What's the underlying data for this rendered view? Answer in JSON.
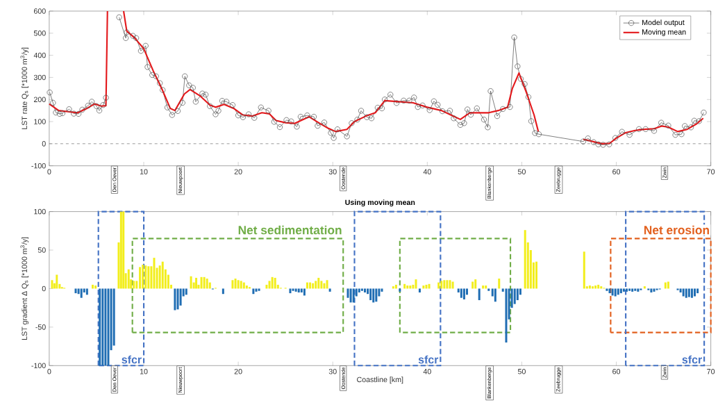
{
  "chart_data": [
    {
      "type": "line",
      "ylabel": "LST rate Q$_{s}$ [*1000 m$^{3}$/y]",
      "xlim": [
        0,
        70
      ],
      "xticks": [
        0,
        10,
        20,
        30,
        40,
        50,
        60,
        70
      ],
      "ylim": [
        -100,
        600
      ],
      "yticks": [
        -100,
        0,
        100,
        200,
        300,
        400,
        500,
        600
      ],
      "legend": "top right",
      "ref_lines": [
        {
          "axis": "y",
          "value": 0,
          "color": "#808080",
          "line_style": "dashed"
        }
      ],
      "annotations": [
        "Den Oever",
        "Nieuwpoort",
        "Oostende",
        "Blankenberge",
        "Zeebrugge",
        "Zwin"
      ],
      "series": [
        {
          "name": "Model output",
          "color": "#404040",
          "marker": "circle",
          "x": [
            0.05,
            0.4,
            0.7,
            1.1,
            1.4,
            2.1,
            2.6,
            3.1,
            3.5,
            4.1,
            4.5,
            5.0,
            5.3,
            5.7,
            6.0,
            6.7,
            7.4,
            8.1,
            8.2,
            8.85,
            9.2,
            9.7,
            10.2,
            10.4,
            10.9,
            11.3,
            11.7,
            12.0,
            12.5,
            13.0,
            13.6,
            14.1,
            14.35,
            14.8,
            15.2,
            15.5,
            16.2,
            16.55,
            17.0,
            17.6,
            17.9,
            18.3,
            18.75,
            19.4,
            20.0,
            20.5,
            21.1,
            21.7,
            22.4,
            23.2,
            23.8,
            24.4,
            25.1,
            25.6,
            26.2,
            26.6,
            27.3,
            28.0,
            28.4,
            29.1,
            29.8,
            30.1,
            30.5,
            31.5,
            32.0,
            32.6,
            33.0,
            33.6,
            34.1,
            34.75,
            35.2,
            35.5,
            36.1,
            36.75,
            37.5,
            38.1,
            38.6,
            39.0,
            39.5,
            40.25,
            40.7,
            41.1,
            41.6,
            42.4,
            42.8,
            43.5,
            43.9,
            44.25,
            44.6,
            45.25,
            46.0,
            46.4,
            46.7,
            47.4,
            48.0,
            48.75,
            49.2,
            49.55,
            49.9,
            50.3,
            50.7,
            51.0,
            51.4,
            51.8,
            56.5,
            57.0,
            57.6,
            58.1,
            58.6,
            59.25,
            59.9,
            60.6,
            61.4,
            62.4,
            63.1,
            64.0,
            64.75,
            65.5,
            66.25,
            66.9,
            67.25,
            67.9,
            68.25,
            68.75,
            69.25
          ],
          "values": [
            232,
            185,
            141,
            135,
            138,
            156,
            136,
            135,
            154,
            172,
            190,
            170,
            150,
            175,
            208,
            null,
            572,
            478,
            504,
            488,
            478,
            420,
            443,
            347,
            311,
            305,
            274,
            243,
            164,
            130,
            148,
            185,
            305,
            264,
            253,
            190,
            227,
            222,
            170,
            133,
            149,
            194,
            190,
            175,
            128,
            120,
            133,
            117,
            164,
            149,
            99,
            75,
            107,
            101,
            77,
            122,
            128,
            122,
            81,
            96,
            49,
            26,
            65,
            33,
            93,
            109,
            149,
            120,
            115,
            163,
            160,
            200,
            222,
            184,
            195,
            195,
            209,
            166,
            173,
            152,
            192,
            176,
            147,
            149,
            115,
            85,
            93,
            155,
            131,
            160,
            109,
            74,
            238,
            125,
            157,
            166,
            481,
            350,
            293,
            270,
            211,
            102,
            48,
            43,
            10,
            24,
            7,
            -3,
            -5,
            -3,
            26,
            54,
            40,
            66,
            66,
            58,
            95,
            82,
            40,
            43,
            80,
            74,
            104,
            102,
            141
          ]
        },
        {
          "name": "Moving mean",
          "color": "#e3191c",
          "marker": "none",
          "x": [
            0,
            1,
            2,
            3,
            4,
            4.8,
            5.5,
            6.0,
            6.16,
            6.5,
            7.87,
            8.2,
            9,
            10,
            11,
            12,
            12.8,
            13.3,
            14.3,
            14.9,
            16,
            17,
            17.6,
            18.5,
            19.5,
            20.5,
            21.5,
            22.5,
            23.3,
            24,
            25,
            26,
            27.5,
            28.5,
            29.5,
            30.3,
            31.5,
            32.3,
            33.5,
            34.5,
            35.5,
            37,
            38.5,
            40,
            41.5,
            42.5,
            43.5,
            44.5,
            45.5,
            46.5,
            47.5,
            48.5,
            49,
            49.7,
            50.5,
            51.3,
            51.75,
            54,
            56.5,
            57.5,
            58.5,
            59.3,
            60,
            61,
            62,
            63,
            64,
            64.8,
            65.5,
            66.5,
            67.5,
            68.5,
            69.2
          ],
          "values": [
            180,
            150,
            145,
            140,
            160,
            180,
            170,
            172,
            600,
            null,
            600,
            510,
            480,
            430,
            330,
            240,
            160,
            150,
            225,
            245,
            215,
            175,
            165,
            178,
            160,
            130,
            125,
            140,
            135,
            105,
            95,
            92,
            122,
            95,
            70,
            55,
            65,
            100,
            125,
            140,
            195,
            190,
            185,
            165,
            150,
            130,
            110,
            140,
            140,
            140,
            150,
            165,
            250,
            320,
            230,
            130,
            55,
            null,
            20,
            10,
            0,
            2,
            25,
            50,
            60,
            65,
            68,
            80,
            75,
            55,
            65,
            90,
            115
          ]
        }
      ]
    },
    {
      "type": "bar",
      "title": "Using moving mean",
      "xlabel": "Coastline [km]",
      "ylabel": "LST gradient Δ Q$_{s}$ [*1000 m$^{3}$/y]",
      "xlim": [
        0,
        70
      ],
      "xticks": [
        0,
        10,
        20,
        30,
        40,
        50,
        60,
        70
      ],
      "ylim": [
        -100,
        100
      ],
      "yticks": [
        -100,
        -50,
        0,
        50,
        100
      ],
      "annotations": [
        "Den Oever",
        "Nieuwpoort",
        "Oostende",
        "Blankenberge",
        "Zeebrugge",
        "Zwin",
        "sfcr",
        "sfcr",
        "sfcr",
        "Net sedimentation",
        "Net erosion"
      ],
      "series": [
        {
          "color": "#f2ee1c",
          "x": [
            0.3,
            0.55,
            0.8,
            1.1,
            1.35,
            1.6,
            4.6,
            4.9,
            7.35,
            7.6,
            7.85,
            8.1,
            8.4,
            8.65,
            8.95,
            9.25,
            9.6,
            9.9,
            10.2,
            10.5,
            10.8,
            11.1,
            11.4,
            11.7,
            12.0,
            12.3,
            12.6,
            12.9,
            15.0,
            15.3,
            15.55,
            15.8,
            16.1,
            16.4,
            16.7,
            17.0,
            17.6,
            19.4,
            19.7,
            20.0,
            20.3,
            20.6,
            20.9,
            21.2,
            23.0,
            23.3,
            23.6,
            23.9,
            24.2,
            24.5,
            25.0,
            27.3,
            27.6,
            27.9,
            28.2,
            28.5,
            28.8,
            29.1,
            29.4,
            36.4,
            36.7,
            37.6,
            37.9,
            38.2,
            38.5,
            38.8,
            39.6,
            39.9,
            40.2,
            41.2,
            41.5,
            41.8,
            42.1,
            42.4,
            42.7,
            44.8,
            45.1,
            45.9,
            46.2,
            47.6,
            50.35,
            50.65,
            50.95,
            51.25,
            51.55,
            56.6,
            56.9,
            57.2,
            57.5,
            57.8,
            58.1,
            58.4,
            58.7,
            63.0,
            65.2,
            65.5
          ],
          "values": [
            11,
            7,
            18,
            6,
            2,
            1,
            5,
            4,
            60,
            100,
            100,
            20,
            25,
            12,
            10,
            10,
            28,
            31,
            30,
            29,
            29,
            40,
            27,
            30,
            35,
            25,
            18,
            5,
            16,
            8,
            14,
            5,
            15,
            15,
            13,
            8,
            1,
            11,
            13,
            11,
            10,
            8,
            4,
            2,
            5,
            10,
            15,
            14,
            5,
            1,
            1,
            8,
            8,
            7,
            10,
            14,
            10,
            7,
            11,
            3,
            5,
            6,
            4,
            4,
            5,
            12,
            4,
            5,
            6,
            8,
            10,
            11,
            11,
            11,
            9,
            9,
            12,
            4,
            4,
            13,
            76,
            60,
            50,
            34,
            35,
            48,
            3,
            4,
            3,
            4,
            5,
            3,
            1,
            3,
            8,
            9
          ]
        },
        {
          "color": "#1f6db3",
          "x": [
            2.8,
            3.1,
            3.4,
            3.7,
            4.0,
            5.35,
            5.65,
            5.95,
            6.25,
            6.55,
            6.85,
            13.3,
            13.6,
            13.9,
            14.2,
            14.5,
            17.3,
            18.4,
            21.6,
            21.9,
            22.2,
            25.5,
            25.8,
            26.1,
            26.4,
            26.7,
            27.0,
            29.7,
            31.6,
            31.9,
            32.2,
            32.5,
            32.8,
            33.1,
            33.4,
            33.7,
            34.0,
            34.3,
            34.6,
            34.9,
            35.2,
            37.1,
            39.2,
            43.3,
            43.6,
            43.9,
            44.2,
            45.5,
            46.5,
            46.9,
            47.2,
            48.0,
            48.35,
            48.65,
            48.95,
            49.25,
            49.55,
            49.85,
            59.0,
            59.3,
            59.6,
            59.9,
            60.2,
            60.5,
            60.8,
            61.1,
            61.4,
            61.7,
            62.0,
            62.3,
            62.6,
            63.4,
            63.7,
            64.0,
            64.3,
            64.6,
            66.5,
            66.8,
            67.1,
            67.4,
            67.7,
            68.0,
            68.3,
            68.6
          ],
          "values": [
            -6,
            -7,
            -12,
            -5,
            -8,
            -100,
            -100,
            -100,
            -100,
            -80,
            -74,
            -28,
            -27,
            -22,
            -10,
            -8,
            -1,
            -7,
            -7,
            -4,
            -3,
            -6,
            -3,
            -4,
            -5,
            -5,
            -9,
            -4,
            -12,
            -18,
            -18,
            -10,
            -5,
            -3,
            -5,
            -7,
            -15,
            -18,
            -17,
            -10,
            -4,
            -4,
            -5,
            -5,
            -12,
            -14,
            -8,
            -15,
            -3,
            -10,
            -17,
            -4,
            -70,
            -40,
            -25,
            -20,
            -15,
            -8,
            -3,
            -6,
            -9,
            -10,
            -8,
            -6,
            -4,
            -4,
            -3,
            -4,
            -3,
            -4,
            -2,
            -2,
            -5,
            -4,
            -2,
            -1,
            -2,
            -5,
            -10,
            -12,
            -11,
            -12,
            -10,
            -6
          ]
        }
      ]
    }
  ]
}
